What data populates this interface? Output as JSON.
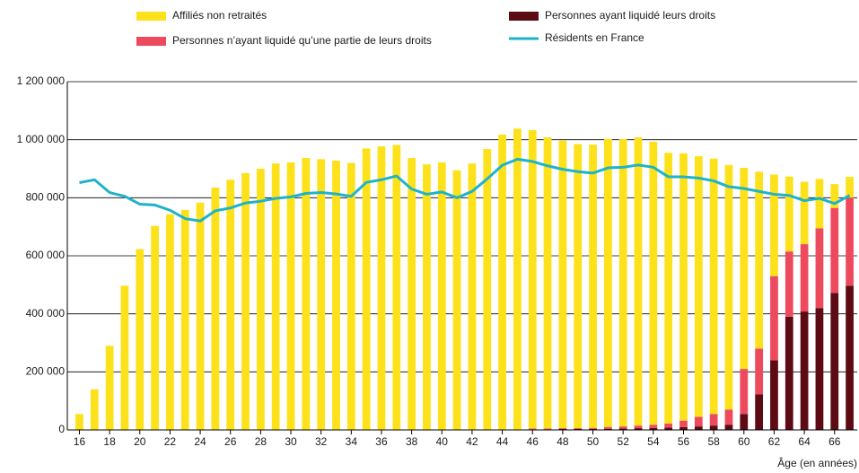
{
  "chart_data": {
    "type": "bar",
    "stacked": true,
    "x": [
      16,
      17,
      18,
      19,
      20,
      21,
      22,
      23,
      24,
      25,
      26,
      27,
      28,
      29,
      30,
      31,
      32,
      33,
      34,
      35,
      36,
      37,
      38,
      39,
      40,
      41,
      42,
      43,
      44,
      45,
      46,
      47,
      48,
      49,
      50,
      51,
      52,
      53,
      54,
      55,
      56,
      57,
      58,
      59,
      60,
      61,
      62,
      63,
      64,
      65,
      66,
      67
    ],
    "xlim": [
      15.2,
      67.5
    ],
    "xticks": [
      16,
      18,
      20,
      22,
      24,
      26,
      28,
      30,
      32,
      34,
      36,
      38,
      40,
      42,
      44,
      46,
      48,
      50,
      52,
      54,
      56,
      58,
      60,
      62,
      64,
      66
    ],
    "xlabel": "Âge (en années)",
    "ylim": [
      0,
      1200000
    ],
    "yticks": [
      0,
      {
        "value": 200000,
        "label": "200 000"
      },
      {
        "value": 400000,
        "label": "400 000"
      },
      {
        "value": 600000,
        "label": "600 000"
      },
      {
        "value": 800000,
        "label": "800 000"
      },
      {
        "value": 1000000,
        "label": "1 000 000"
      },
      {
        "value": 1200000,
        "label": "1 200 000"
      }
    ],
    "grid": true,
    "series": [
      {
        "name": "Personnes ayant liquidé leurs droits",
        "type": "bar",
        "color": "#5c0a14",
        "values": [
          0,
          0,
          0,
          0,
          0,
          0,
          0,
          0,
          0,
          0,
          0,
          0,
          0,
          0,
          0,
          0,
          0,
          0,
          0,
          0,
          0,
          0,
          0,
          0,
          0,
          0,
          0,
          0,
          0,
          0,
          2000,
          2000,
          3000,
          3000,
          3000,
          4000,
          5000,
          6000,
          7000,
          8000,
          10000,
          12000,
          15000,
          18000,
          55000,
          123000,
          240000,
          390000,
          408000,
          420000,
          472000,
          497000
        ]
      },
      {
        "name": "Personnes n’ayant liquidé qu’une partie de leurs droits",
        "type": "bar",
        "color": "#ee4a5e",
        "values": [
          0,
          0,
          0,
          0,
          0,
          0,
          0,
          0,
          0,
          0,
          0,
          0,
          0,
          0,
          0,
          0,
          0,
          0,
          0,
          0,
          0,
          0,
          0,
          0,
          0,
          0,
          0,
          0,
          0,
          0,
          3000,
          3000,
          3000,
          3000,
          4000,
          6000,
          7000,
          9000,
          11000,
          14000,
          22000,
          33000,
          40000,
          52000,
          155000,
          157000,
          290000,
          225000,
          232000,
          275000,
          293000,
          303000
        ]
      },
      {
        "name": "Affiliés non retraités",
        "type": "bar",
        "color": "#fde11b",
        "values": [
          55000,
          140000,
          290000,
          497000,
          623000,
          703000,
          743000,
          758000,
          783000,
          835000,
          862000,
          885000,
          900000,
          918000,
          922000,
          937000,
          933000,
          928000,
          920000,
          970000,
          977000,
          982000,
          937000,
          915000,
          922000,
          895000,
          918000,
          968000,
          1018000,
          1038000,
          1028000,
          1003000,
          991000,
          979000,
          976000,
          993000,
          990000,
          993000,
          975000,
          933000,
          921000,
          898000,
          880000,
          843000,
          693000,
          610000,
          350000,
          258000,
          215000,
          170000,
          82000,
          72000
        ]
      },
      {
        "name": "Résidents en France",
        "type": "line",
        "color": "#1fb3c9",
        "values": [
          852000,
          862000,
          818000,
          805000,
          778000,
          775000,
          757000,
          728000,
          720000,
          755000,
          765000,
          782000,
          788000,
          798000,
          803000,
          815000,
          818000,
          813000,
          805000,
          853000,
          862000,
          875000,
          830000,
          812000,
          820000,
          800000,
          822000,
          865000,
          912000,
          933000,
          925000,
          910000,
          898000,
          890000,
          885000,
          903000,
          905000,
          913000,
          905000,
          872000,
          872000,
          868000,
          858000,
          838000,
          832000,
          822000,
          812000,
          808000,
          790000,
          798000,
          780000,
          808000
        ]
      }
    ]
  }
}
